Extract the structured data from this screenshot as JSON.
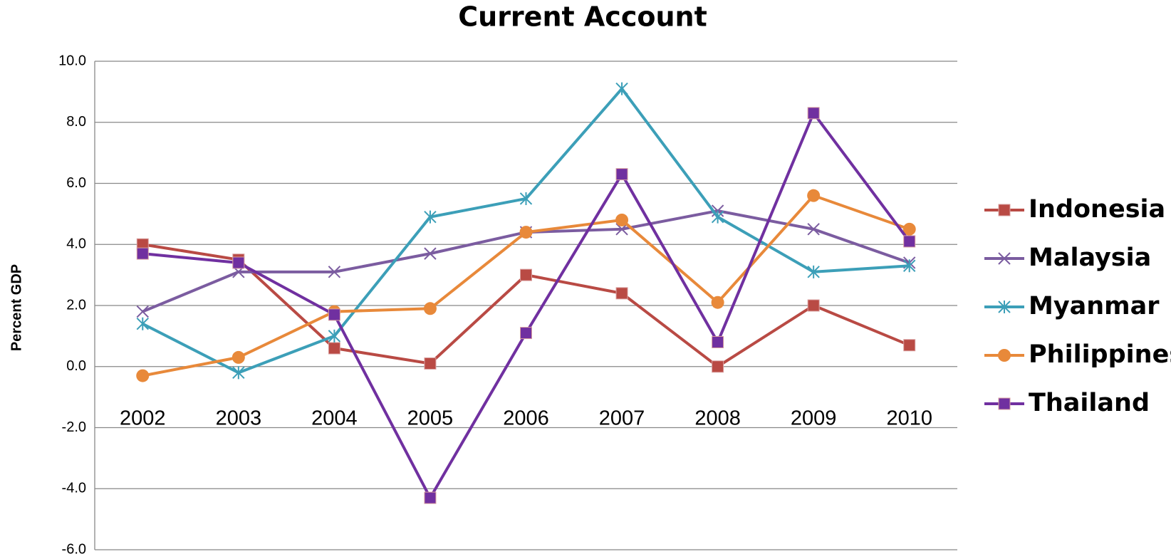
{
  "chart_data": {
    "type": "line",
    "title": "Current Account",
    "y_label": "Percent GDP",
    "categories": [
      "2002",
      "2003",
      "2004",
      "2005",
      "2006",
      "2007",
      "2008",
      "2009",
      "2010"
    ],
    "ylim": [
      -6,
      10
    ],
    "yticks": [
      {
        "value": -6,
        "label": "-6.0"
      },
      {
        "value": -4,
        "label": "-4.0"
      },
      {
        "value": -2,
        "label": "-2.0"
      },
      {
        "value": 0,
        "label": "0.0"
      },
      {
        "value": 2,
        "label": "2.0"
      },
      {
        "value": 4,
        "label": "4.0"
      },
      {
        "value": 6,
        "label": "6.0"
      },
      {
        "value": 8,
        "label": "8.0"
      },
      {
        "value": 10,
        "label": "10.0"
      }
    ],
    "grid": true,
    "legend": "right",
    "series": [
      {
        "name": "Indonesia",
        "color": "#b94a44",
        "marker": "square",
        "values": [
          4.0,
          3.5,
          0.6,
          0.1,
          3.0,
          2.4,
          0.0,
          2.0,
          0.7
        ]
      },
      {
        "name": "Malaysia",
        "color": "#7b5ca0",
        "marker": "x",
        "values": [
          1.8,
          3.1,
          3.1,
          3.7,
          4.4,
          4.5,
          5.1,
          4.5,
          3.4
        ]
      },
      {
        "name": "Myanmar",
        "color": "#3c9fb8",
        "marker": "star",
        "values": [
          1.4,
          -0.2,
          1.0,
          4.9,
          5.5,
          9.1,
          4.9,
          3.1,
          3.3
        ]
      },
      {
        "name": "Philippines",
        "color": "#e8893a",
        "marker": "circle",
        "values": [
          -0.3,
          0.3,
          1.8,
          1.9,
          4.4,
          4.8,
          2.1,
          5.6,
          4.5
        ]
      },
      {
        "name": "Thailand",
        "color": "#7030a0",
        "marker": "square",
        "values": [
          3.7,
          3.4,
          1.7,
          -4.3,
          1.1,
          6.3,
          0.8,
          8.3,
          4.1
        ]
      }
    ]
  }
}
